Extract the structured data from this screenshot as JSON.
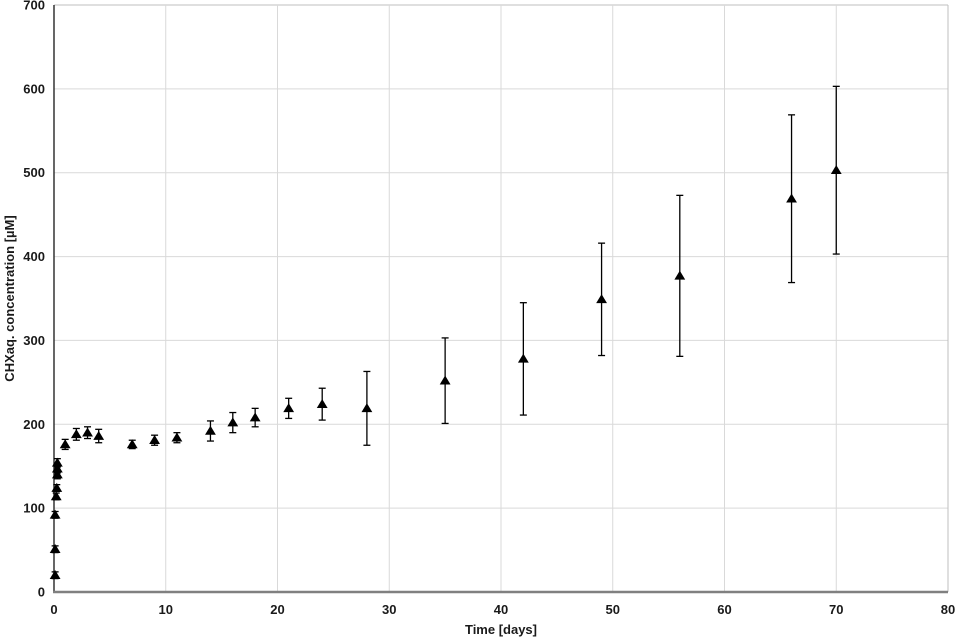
{
  "figure": {
    "background_color": "#ffffff",
    "plot_border_color": "#bfbfbf",
    "gridline_color": "#d9d9d9",
    "y_axis_line_color": "#262626",
    "x_axis_line_color": "#808080",
    "text_color": "#1a1a1a",
    "marker_color": "#000000",
    "error_bar_color": "#000000"
  },
  "chart_data": {
    "type": "scatter",
    "title": "",
    "xlabel": "Time [days]",
    "ylabel": "CHXaq. concentration [µM]",
    "xlim": [
      0,
      80
    ],
    "ylim": [
      0,
      700
    ],
    "x_ticks": [
      0,
      10,
      20,
      30,
      40,
      50,
      60,
      70,
      80
    ],
    "y_ticks": [
      0,
      100,
      200,
      300,
      400,
      500,
      600,
      700
    ],
    "grid": true,
    "legend": false,
    "marker": "triangle-up-filled",
    "error_bars": true,
    "series": [
      {
        "name": "CHX aqueous concentration",
        "points": [
          {
            "x": 0.1,
            "y": 20,
            "err": 4
          },
          {
            "x": 0.1,
            "y": 51,
            "err": 4
          },
          {
            "x": 0.1,
            "y": 92,
            "err": 4
          },
          {
            "x": 0.2,
            "y": 114,
            "err": 4
          },
          {
            "x": 0.25,
            "y": 124,
            "err": 4
          },
          {
            "x": 0.3,
            "y": 140,
            "err": 5
          },
          {
            "x": 0.3,
            "y": 147,
            "err": 5
          },
          {
            "x": 0.3,
            "y": 154,
            "err": 5
          },
          {
            "x": 1,
            "y": 176,
            "err": 6
          },
          {
            "x": 2,
            "y": 188,
            "err": 7
          },
          {
            "x": 3,
            "y": 190,
            "err": 7
          },
          {
            "x": 4,
            "y": 186,
            "err": 8
          },
          {
            "x": 7,
            "y": 176,
            "err": 5
          },
          {
            "x": 9,
            "y": 181,
            "err": 6
          },
          {
            "x": 11,
            "y": 184,
            "err": 6
          },
          {
            "x": 14,
            "y": 192,
            "err": 12
          },
          {
            "x": 16,
            "y": 202,
            "err": 12
          },
          {
            "x": 18,
            "y": 208,
            "err": 11
          },
          {
            "x": 21,
            "y": 219,
            "err": 12
          },
          {
            "x": 24,
            "y": 224,
            "err": 19
          },
          {
            "x": 28,
            "y": 219,
            "err": 44
          },
          {
            "x": 35,
            "y": 252,
            "err": 51
          },
          {
            "x": 42,
            "y": 278,
            "err": 67
          },
          {
            "x": 49,
            "y": 349,
            "err": 67
          },
          {
            "x": 56,
            "y": 377,
            "err": 96
          },
          {
            "x": 66,
            "y": 469,
            "err": 100
          },
          {
            "x": 70,
            "y": 503,
            "err": 100
          }
        ]
      }
    ]
  }
}
